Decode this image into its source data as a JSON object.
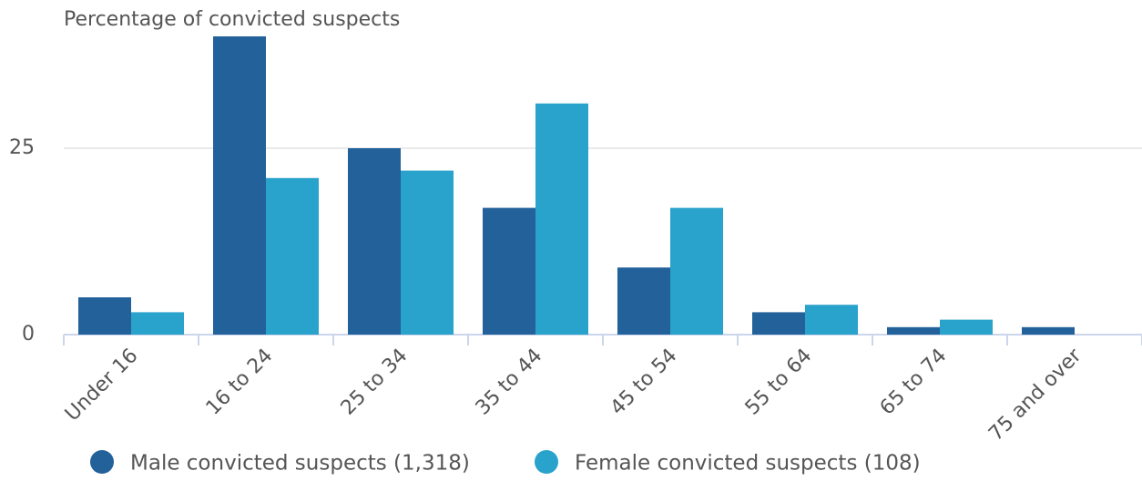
{
  "chart_data": {
    "type": "bar",
    "y_axis_label": "Percentage of convicted suspects",
    "categories": [
      "Under 16",
      "16 to 24",
      "25 to 34",
      "35 to 44",
      "45 to 54",
      "55 to 64",
      "65 to 74",
      "75 and over"
    ],
    "series": [
      {
        "name": "Male convicted suspects (1,318)",
        "color": "#22619a",
        "values": [
          5,
          40,
          25,
          17,
          9,
          3,
          1,
          1
        ]
      },
      {
        "name": "Female convicted suspects (108)",
        "color": "#29a2cc",
        "values": [
          3,
          21,
          22,
          31,
          17,
          4,
          2,
          0
        ]
      }
    ],
    "ylim": [
      0,
      40
    ],
    "yticks": [
      0,
      25
    ],
    "grid": true,
    "legend": "bottom"
  }
}
